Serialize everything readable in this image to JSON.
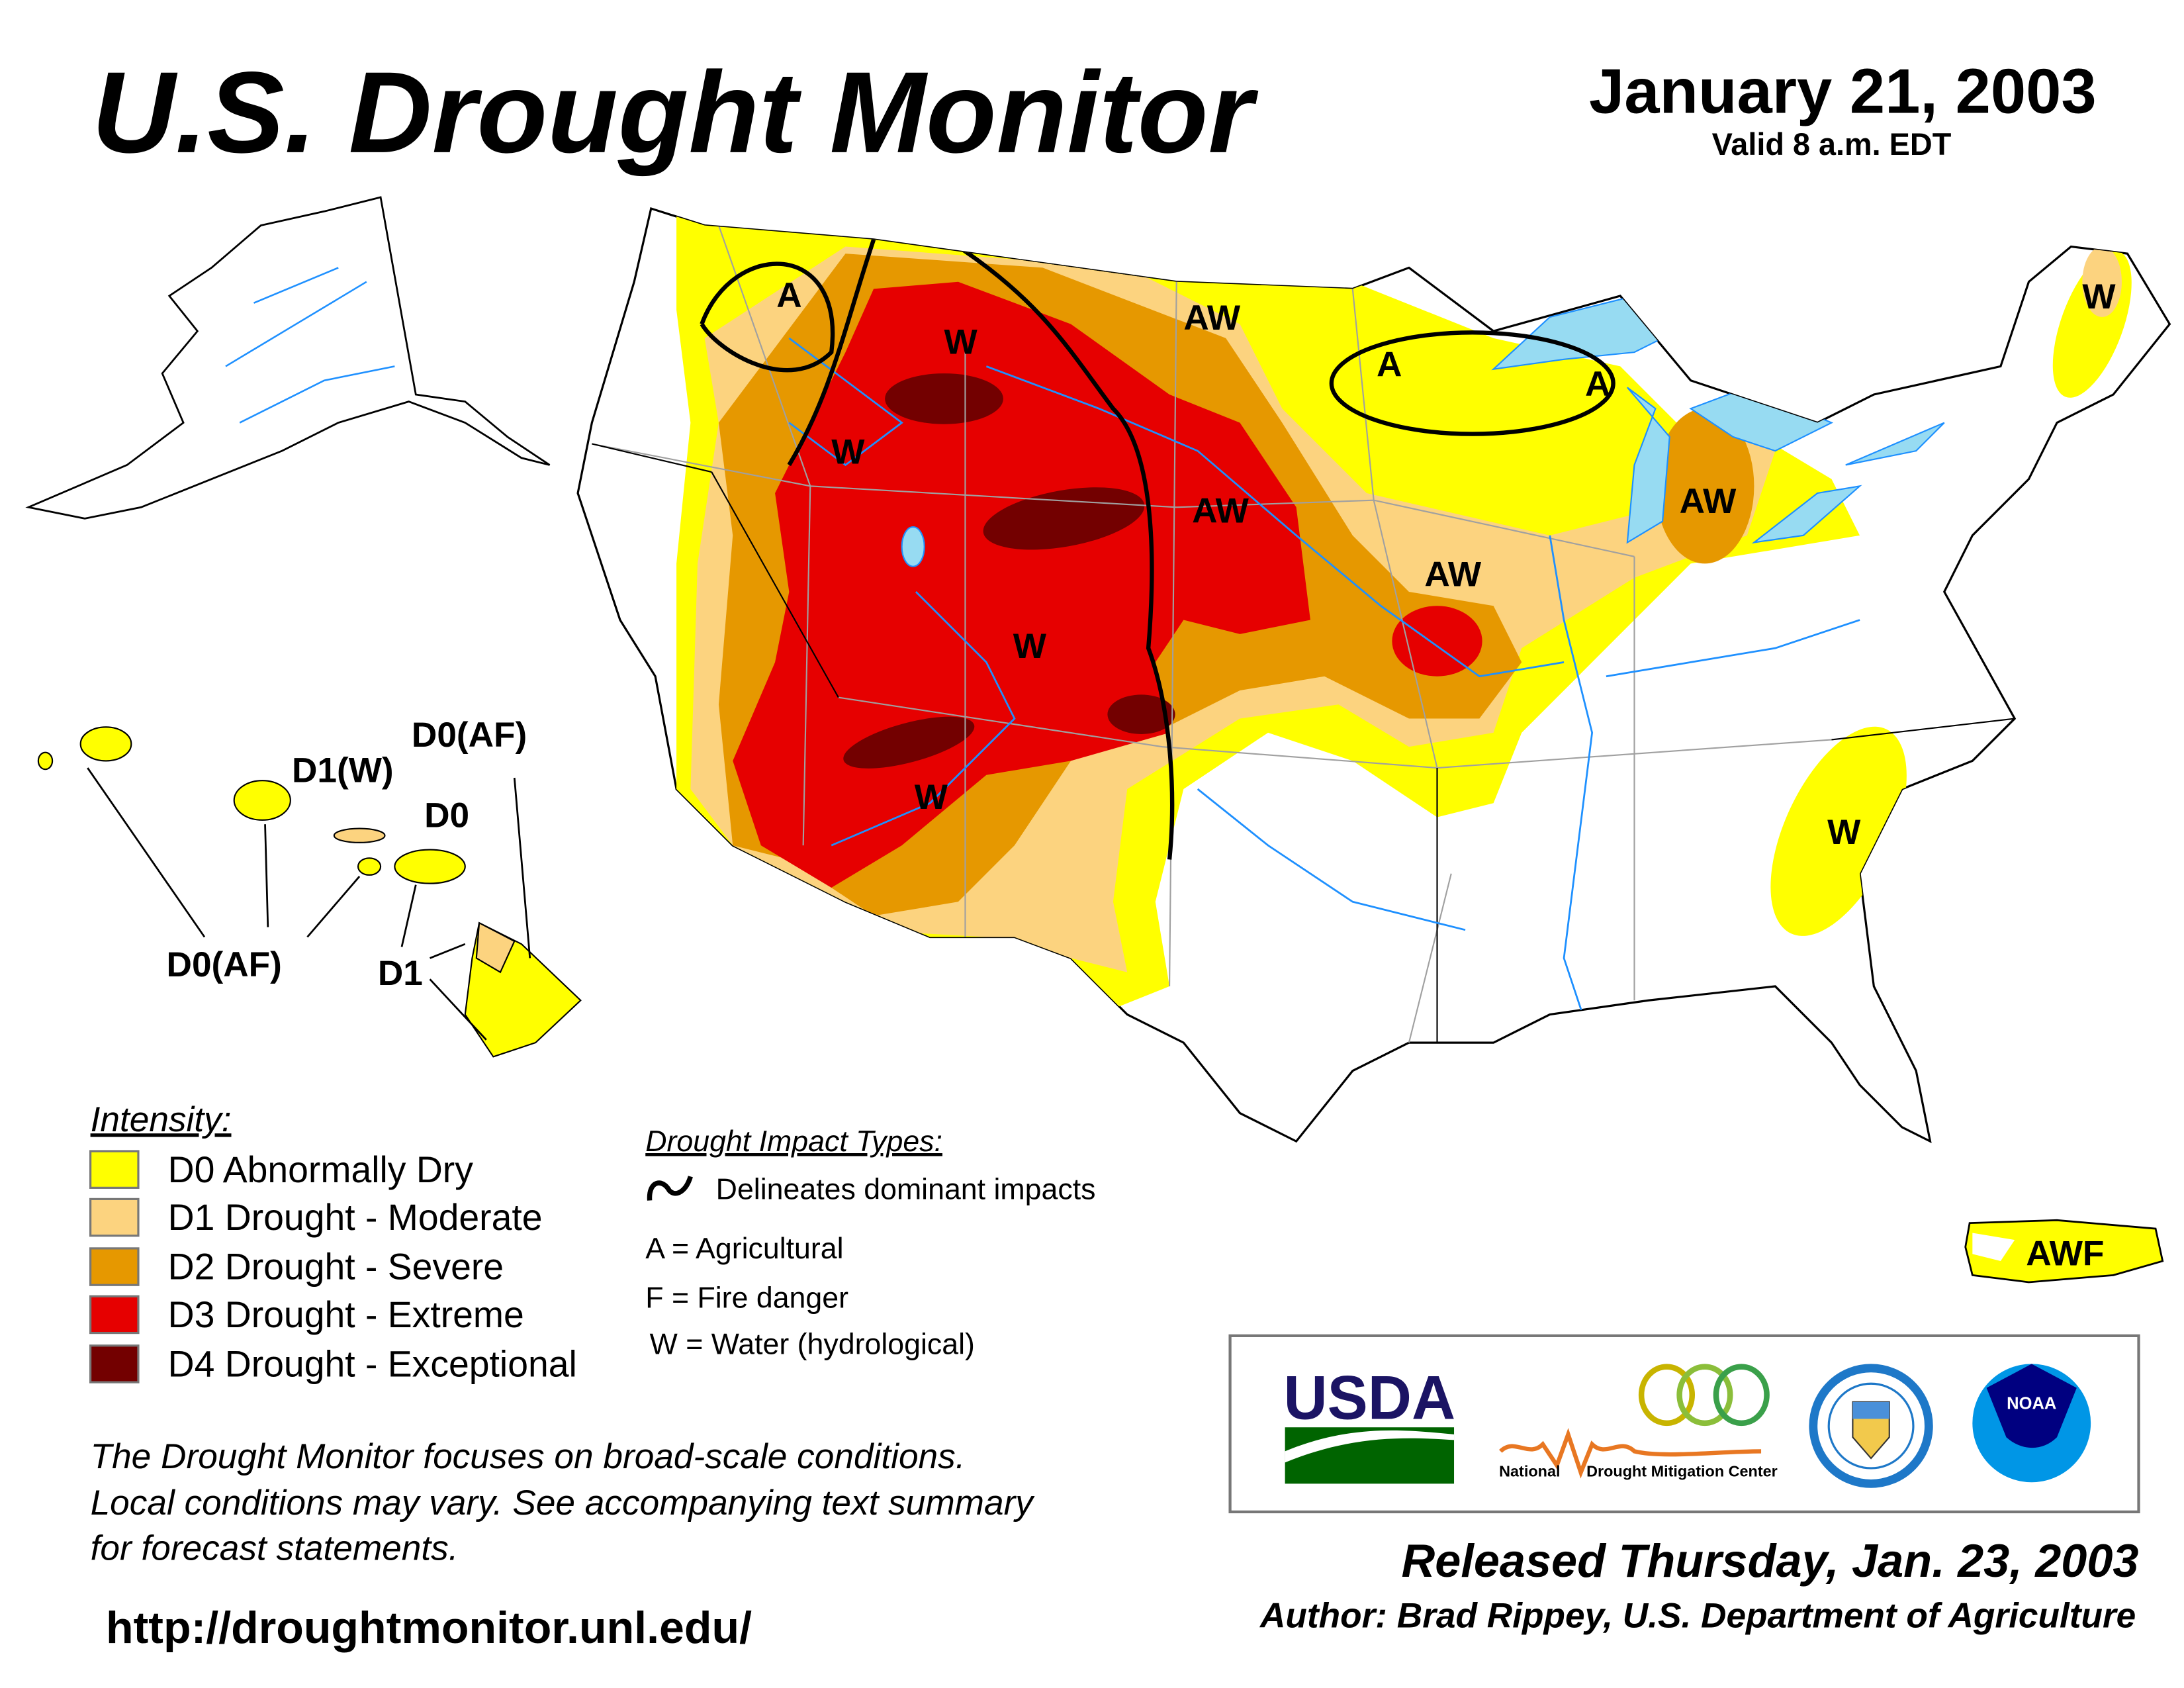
{
  "header": {
    "title": "U.S. Drought Monitor",
    "date": "January 21, 2003",
    "valid": "Valid 8 a.m. EDT"
  },
  "colors": {
    "D0": "#FFFF00",
    "D1": "#FCD37F",
    "D2": "#E69800",
    "D3": "#E60000",
    "D4": "#730000",
    "water": "#97DBF2",
    "rivers": "#1E90FF",
    "borders": "#A0A0A0"
  },
  "legend": {
    "intensity_title": "Intensity:",
    "items": [
      {
        "code": "D0",
        "label": "D0 Abnormally Dry"
      },
      {
        "code": "D1",
        "label": "D1 Drought - Moderate"
      },
      {
        "code": "D2",
        "label": "D2 Drought - Severe"
      },
      {
        "code": "D3",
        "label": "D3 Drought - Extreme"
      },
      {
        "code": "D4",
        "label": "D4 Drought - Exceptional"
      }
    ],
    "impact_title": "Drought Impact Types:",
    "impact_line": "Delineates dominant impacts",
    "impact_types": [
      "A = Agricultural",
      "F = Fire danger",
      "W = Water (hydrological)"
    ]
  },
  "map_labels": {
    "conus": [
      "A",
      "W",
      "AW",
      "A",
      "A",
      "W",
      "W",
      "AW",
      "AW",
      "AW",
      "W",
      "W",
      "W"
    ],
    "puerto_rico": "AWF",
    "hawaii": [
      "D0(AF)",
      "D1(W)",
      "D0",
      "D0(AF)",
      "D1"
    ]
  },
  "disclaimer": [
    "The Drought Monitor focuses on broad-scale conditions.",
    "Local conditions may vary. See accompanying text summary",
    "for forecast statements."
  ],
  "url": "http://droughtmonitor.unl.edu/",
  "logos": {
    "usda": "USDA",
    "ndmc_left": "National",
    "ndmc_right": "Drought Mitigation Center",
    "noaa": "NOAA"
  },
  "footer": {
    "released": "Released Thursday, Jan. 23, 2003",
    "author": "Author: Brad Rippey, U.S. Department of Agriculture"
  }
}
